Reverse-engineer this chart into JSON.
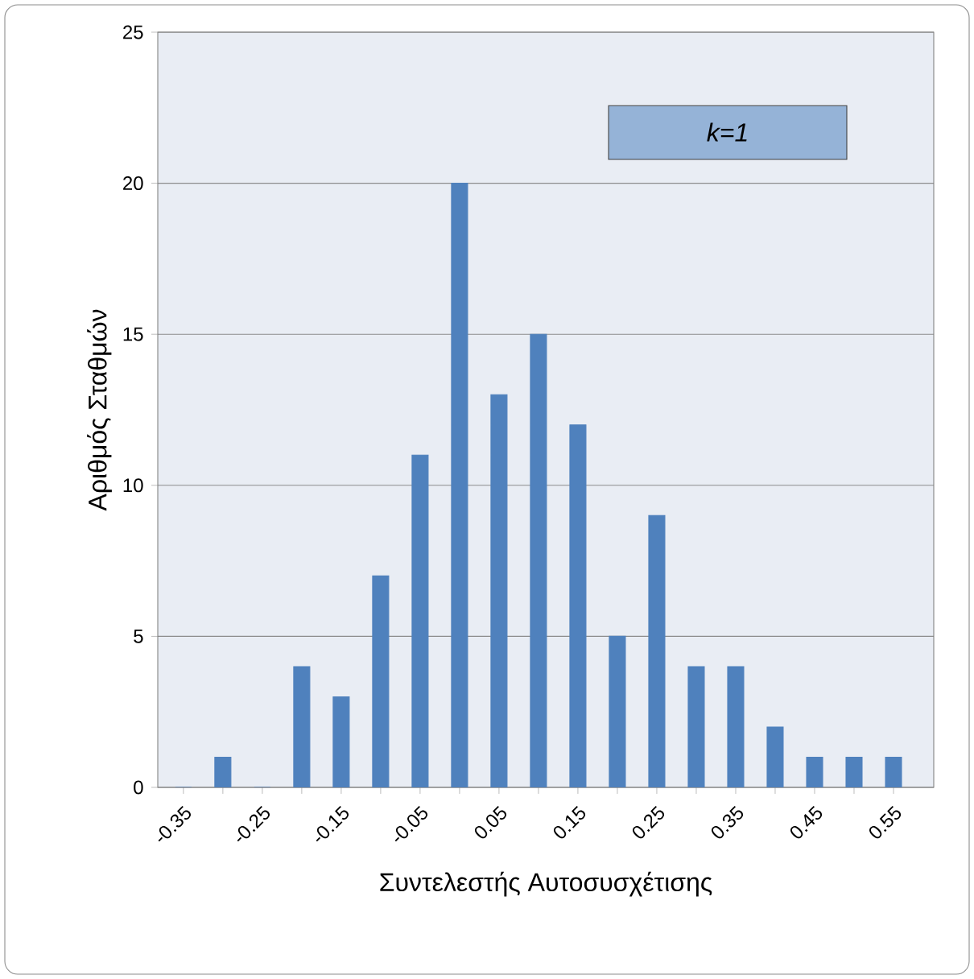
{
  "chart_data": {
    "type": "bar",
    "xlabel": "Συντελεστής Αυτοσυσχέτισης",
    "ylabel": "Αριθμός Σταθμών",
    "categories": [
      "-0.35",
      null,
      "-0.25",
      null,
      "-0.15",
      null,
      "-0.05",
      null,
      "0.05",
      null,
      "0.15",
      null,
      "0.25",
      null,
      "0.35",
      null,
      "0.45",
      null,
      "0.55"
    ],
    "values": [
      0,
      1,
      0,
      4,
      3,
      7,
      11,
      20,
      13,
      15,
      12,
      5,
      9,
      4,
      4,
      2,
      1,
      1,
      1
    ],
    "color": "#4f81bd",
    "ylim": [
      0,
      25
    ],
    "yticks": [
      0,
      5,
      10,
      15,
      20,
      25
    ],
    "grid": "y",
    "annotations": [
      "k=1"
    ]
  }
}
